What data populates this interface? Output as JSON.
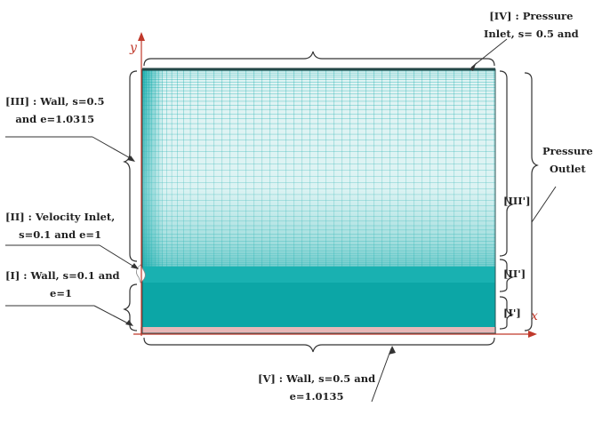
{
  "axes": {
    "x_label": "x",
    "y_label": "y"
  },
  "labels": {
    "top_right": [
      "[IV] : Pressure",
      "Inlet, s= 0.5 and"
    ],
    "wall_III": [
      "[III] : Wall, s=0.5",
      "and e=1.0315"
    ],
    "velocity_inlet": [
      "[II] : Velocity Inlet,",
      "s=0.1 and e=1"
    ],
    "wall_I": [
      "[I] : Wall, s=0.1 and",
      "e=1"
    ],
    "pressure_outlet": [
      "Pressure",
      "Outlet"
    ],
    "bottom_wall": [
      "[V] : Wall, s=0.5 and",
      "e=1.0135"
    ],
    "region_III": "[III']",
    "region_II": "[II']",
    "region_I": "[I']"
  },
  "colors": {
    "mesh": "#0aa8a8",
    "mesh_dense": "#079a9a",
    "axis": "#c0392b",
    "bottom_strip": "#e8b8b8",
    "leader": "#333333"
  }
}
